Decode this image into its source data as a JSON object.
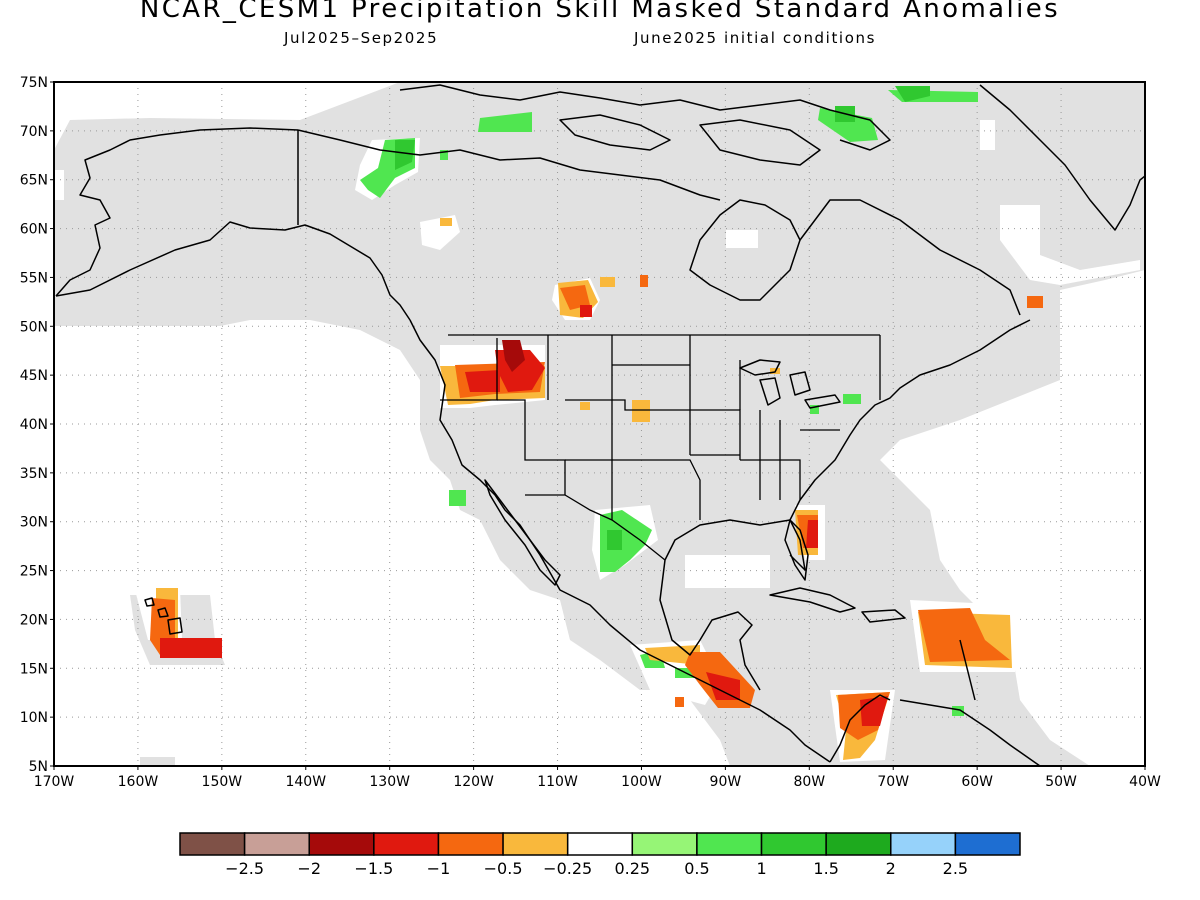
{
  "title": "NCAR_CESM1 Precipitation Skill Masked Standard Anomalies",
  "subtitle_left": "Jul2025–Sep2025",
  "subtitle_right": "June2025 initial conditions",
  "lat_labels": [
    "75N",
    "70N",
    "65N",
    "60N",
    "55N",
    "50N",
    "45N",
    "40N",
    "35N",
    "30N",
    "25N",
    "20N",
    "15N",
    "10N",
    "5N"
  ],
  "lon_labels": [
    "170W",
    "160W",
    "150W",
    "140W",
    "130W",
    "120W",
    "110W",
    "100W",
    "90W",
    "80W",
    "70W",
    "60W",
    "50W",
    "40W"
  ],
  "colorbar": {
    "colors": [
      "#7f5147",
      "#c89f97",
      "#a50a0a",
      "#e0190f",
      "#f56810",
      "#f9b83c",
      "#ffffff",
      "#96f576",
      "#50e650",
      "#30c830",
      "#1eaa1e",
      "#96d2fa",
      "#1e6ed2"
    ],
    "tick_labels": [
      "−2.5",
      "−2",
      "−1.5",
      "−1",
      "−0.5",
      "−0.25",
      "0.25",
      "0.5",
      "1",
      "1.5",
      "2",
      "2.5"
    ]
  },
  "colors": {
    "skill_mask_gray": "#e1e1e1",
    "outline": "#000000",
    "grid": "#999999"
  }
}
